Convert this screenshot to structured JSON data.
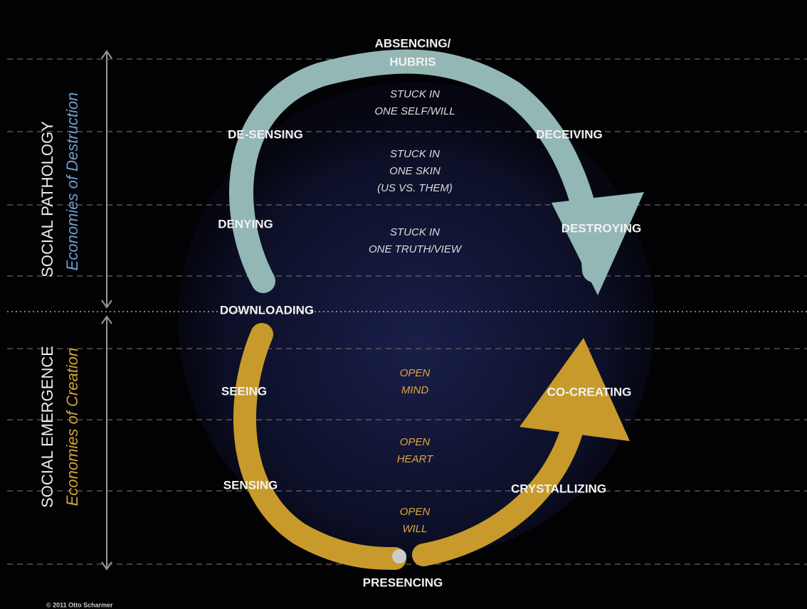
{
  "sections": [
    {
      "title": "SOCIAL PATHOLOGY",
      "subtitle": "Economies of Destruction"
    },
    {
      "title": "SOCIAL EMERGENCE",
      "subtitle": "Economies of Creation"
    }
  ],
  "nodes": [
    {
      "lines": [
        "ABSENCING/",
        "HUBRIS"
      ]
    },
    {
      "lines": [
        "DE-SENSING"
      ]
    },
    {
      "lines": [
        "DECEIVING"
      ]
    },
    {
      "lines": [
        "DENYING"
      ]
    },
    {
      "lines": [
        "DESTROYING"
      ]
    },
    {
      "lines": [
        "DOWNLOADING"
      ]
    },
    {
      "lines": [
        "SEEING"
      ]
    },
    {
      "lines": [
        "CO-CREATING"
      ]
    },
    {
      "lines": [
        "SENSING"
      ]
    },
    {
      "lines": [
        "CRYSTALLIZING"
      ]
    },
    {
      "lines": [
        "PRESENCING"
      ]
    }
  ],
  "levels": [
    {
      "lines": [
        "STUCK IN",
        "ONE SELF/WILL"
      ]
    },
    {
      "lines": [
        "STUCK IN",
        "ONE SKIN",
        "(US VS. THEM)"
      ]
    },
    {
      "lines": [
        "STUCK IN",
        "ONE TRUTH/VIEW"
      ]
    },
    {
      "lines": [
        "OPEN",
        "MIND"
      ]
    },
    {
      "lines": [
        "OPEN",
        "HEART"
      ]
    },
    {
      "lines": [
        "OPEN",
        "WILL"
      ]
    }
  ],
  "copyright": "© 2011 Otto Scharmer"
}
